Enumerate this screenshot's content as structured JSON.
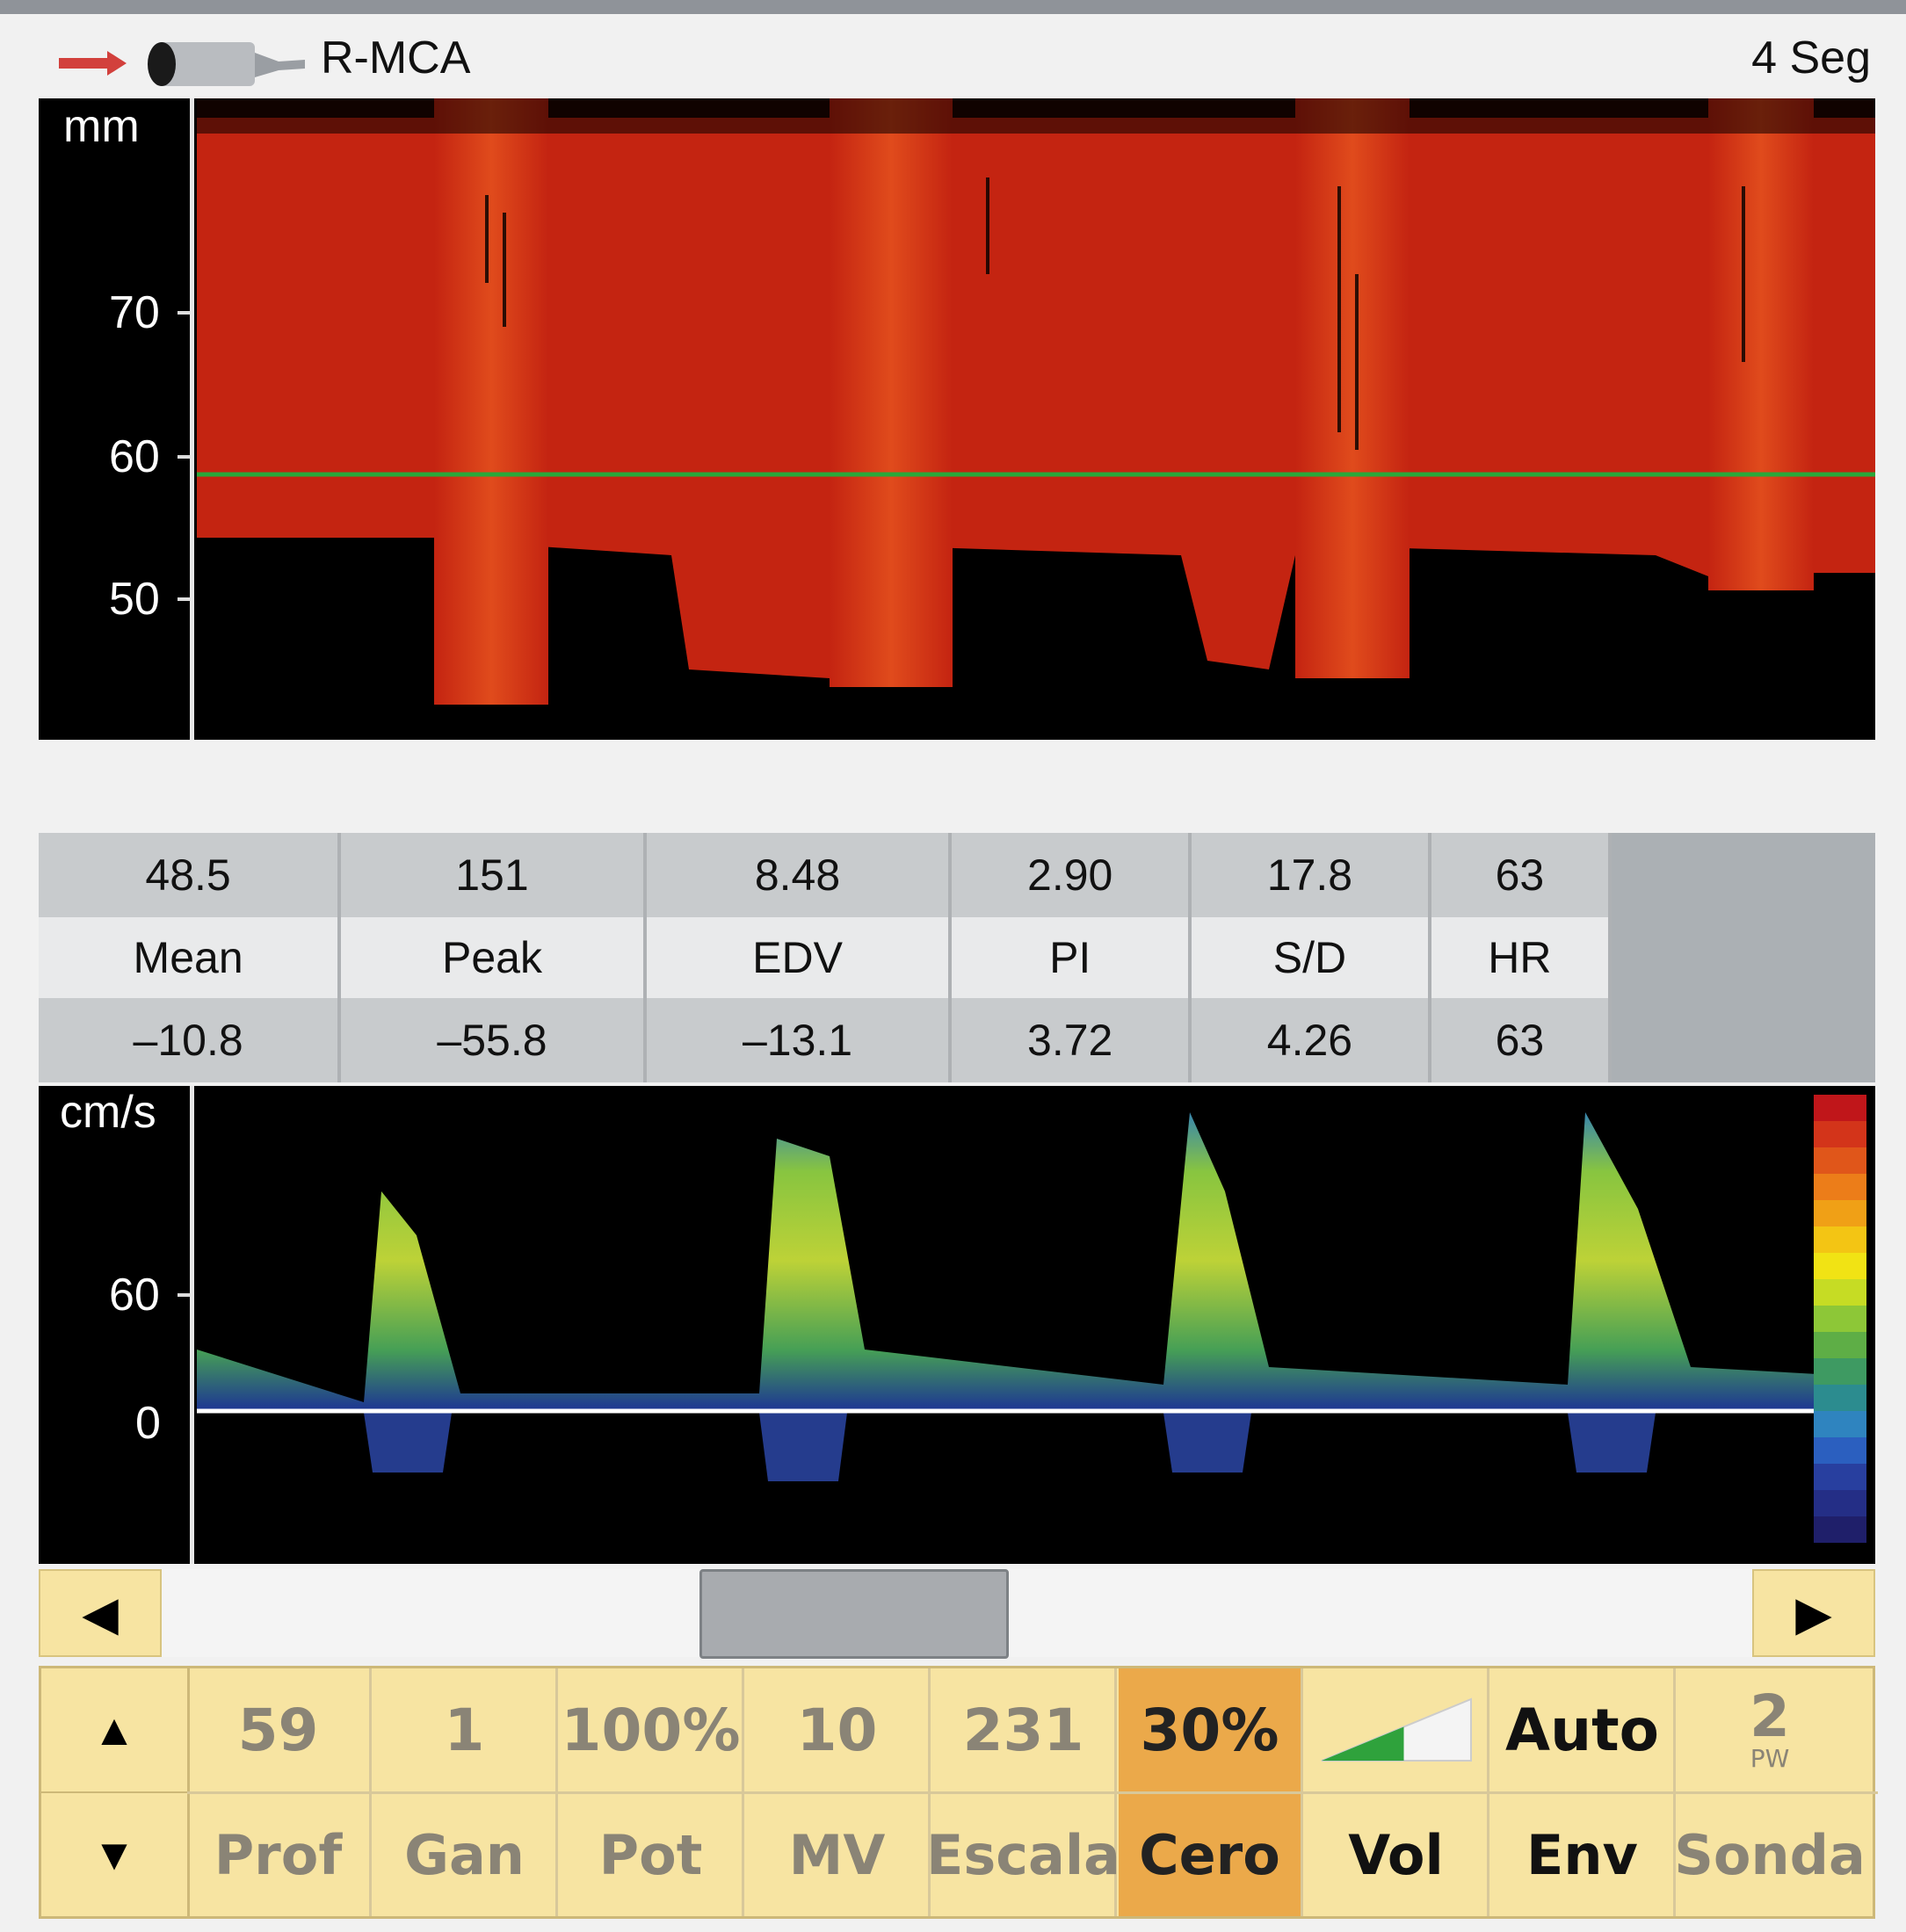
{
  "header": {
    "vessel": "R-MCA",
    "time_span": "4 Seg"
  },
  "mmode": {
    "unit": "mm",
    "ticks": [
      "70",
      "60",
      "50"
    ],
    "gate_line_color": "#2aa83a",
    "flow_color": "#c42411"
  },
  "measurements": {
    "columns": [
      {
        "top": "48.5",
        "label": "Mean",
        "bottom": "–10.8"
      },
      {
        "top": "151",
        "label": "Peak",
        "bottom": "–55.8"
      },
      {
        "top": "8.48",
        "label": "EDV",
        "bottom": "–13.1"
      },
      {
        "top": "2.90",
        "label": "PI",
        "bottom": "3.72"
      },
      {
        "top": "17.8",
        "label": "S/D",
        "bottom": "4.26"
      },
      {
        "top": "63",
        "label": "HR",
        "bottom": "63"
      }
    ]
  },
  "spectrum": {
    "unit": "cm/s",
    "ticks": [
      "60",
      "0"
    ],
    "color_scale": [
      "#c0161a",
      "#d3341a",
      "#e0561a",
      "#ec7d19",
      "#f0a016",
      "#f3c514",
      "#f1e314",
      "#c6dc24",
      "#8dc737",
      "#5eae46",
      "#3e9a62",
      "#2c8c8f",
      "#2f84bf",
      "#2b5fbf",
      "#283f9f",
      "#242e86",
      "#1f1f6a"
    ]
  },
  "scrollbar": {
    "left_label": "◀",
    "right_label": "▶",
    "position": 0.42
  },
  "controls": {
    "up_label": "▲",
    "down_label": "▼",
    "items": [
      {
        "value": "59",
        "label": "Prof"
      },
      {
        "value": "1",
        "label": "Gan"
      },
      {
        "value": "100%",
        "label": "Pot"
      },
      {
        "value": "10",
        "label": "MV"
      },
      {
        "value": "231",
        "label": "Escala"
      },
      {
        "value": "30%",
        "label": "Cero"
      },
      {
        "value": "",
        "label": "Vol",
        "icon": "volume-ramp-icon"
      },
      {
        "value": "Auto",
        "label": "Env"
      },
      {
        "value": "2",
        "sub": "PW",
        "label": "Sonda"
      }
    ],
    "selected": "Cero",
    "volume_level": 0.55
  }
}
